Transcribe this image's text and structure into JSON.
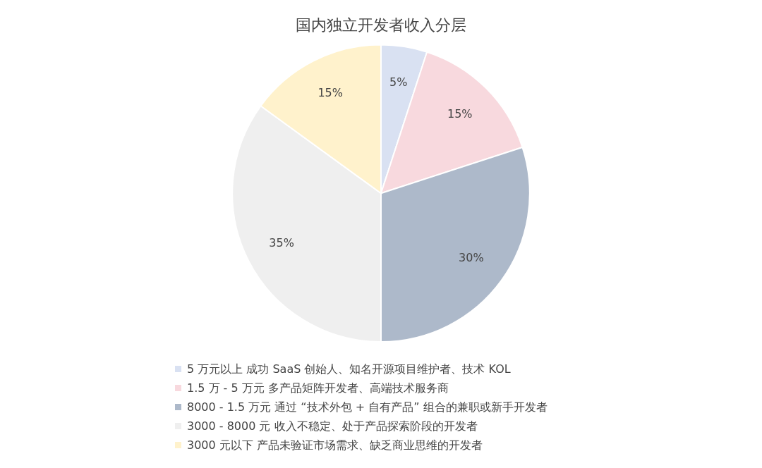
{
  "chart_data": {
    "type": "pie",
    "title": "国内独立开发者收入分层",
    "categories": [
      "5 万元以上 成功 SaaS 创始人、知名开源项目维护者、技术 KOL",
      "1.5 万 - 5 万元 多产品矩阵开发者、高端技术服务商",
      "8000 - 1.5 万元 通过 “技术外包 + 自有产品” 组合的兼职或新手开发者",
      "3000 - 8000 元 收入不稳定、处于产品探索阶段的开发者",
      "3000 元以下 产品未验证市场需求、缺乏商业思维的开发者"
    ],
    "values": [
      5,
      15,
      30,
      35,
      15
    ],
    "value_labels": [
      "5%",
      "15%",
      "30%",
      "35%",
      "15%"
    ],
    "colors": [
      "#d9e1f2",
      "#f8d9de",
      "#adb9ca",
      "#efefef",
      "#fff2cc"
    ],
    "legend": "bottom"
  }
}
